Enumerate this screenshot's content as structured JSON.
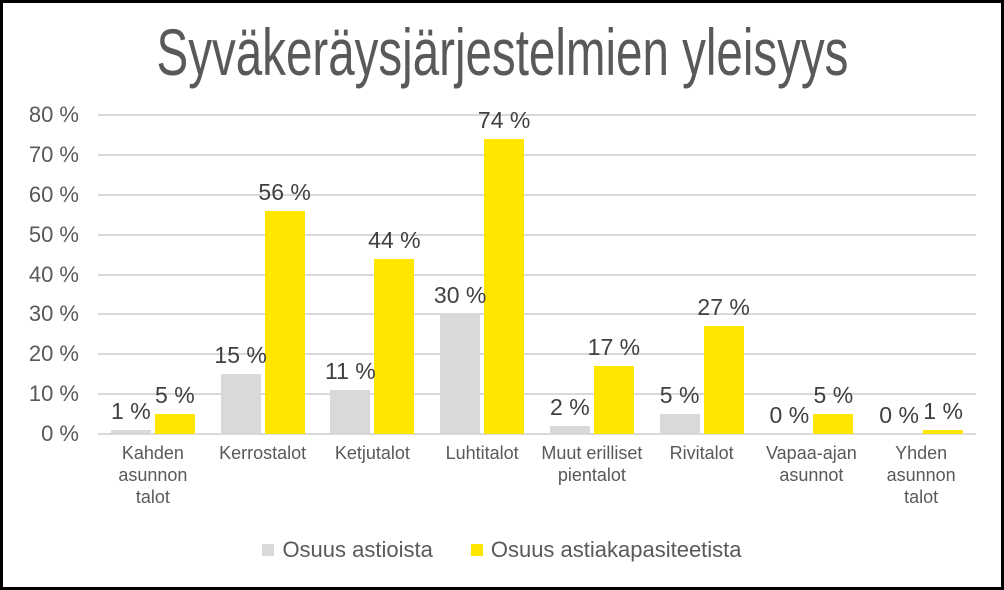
{
  "colors": {
    "background": "#ffffff",
    "border": "#000000",
    "gridline": "#d9d9d9",
    "title_text": "#595959",
    "axis_text": "#595959",
    "value_label_text": "#404040",
    "category_text": "#595959",
    "legend_text": "#595959",
    "series_gray": "#d9d9d9",
    "series_yellow": "#ffe600"
  },
  "chart_data": {
    "type": "bar",
    "title": "Syväkeräysjärjestelmien yleisyys",
    "categories": [
      "Kahden asunnon talot",
      "Kerrostalot",
      "Ketjutalot",
      "Luhtitalot",
      "Muut erilliset pientalot",
      "Rivitalot",
      "Vapaa-ajan asunnot",
      "Yhden asunnon talot"
    ],
    "category_label_lines": [
      [
        "Kahden",
        "asunnon",
        "talot"
      ],
      [
        "Kerrostalot"
      ],
      [
        "Ketjutalot"
      ],
      [
        "Luhtitalot"
      ],
      [
        "Muut erilliset",
        "pientalot"
      ],
      [
        "Rivitalot"
      ],
      [
        "Vapaa-ajan",
        "asunnot"
      ],
      [
        "Yhden",
        "asunnon",
        "talot"
      ]
    ],
    "series": [
      {
        "name": "Osuus astioista",
        "color": "#d9d9d9",
        "values": [
          1,
          15,
          11,
          30,
          2,
          5,
          0,
          0
        ]
      },
      {
        "name": "Osuus astiakapasiteetista",
        "color": "#ffe600",
        "values": [
          5,
          56,
          44,
          74,
          17,
          27,
          5,
          1
        ]
      }
    ],
    "value_label_suffix": " %",
    "y_axis": {
      "min": 0,
      "max": 80,
      "step": 10,
      "tick_suffix": " %",
      "ticks": [
        "0 %",
        "10 %",
        "20 %",
        "30 %",
        "40 %",
        "50 %",
        "60 %",
        "70 %",
        "80 %"
      ]
    },
    "grid": true,
    "legend_position": "bottom",
    "xlabel": "",
    "ylabel": ""
  }
}
